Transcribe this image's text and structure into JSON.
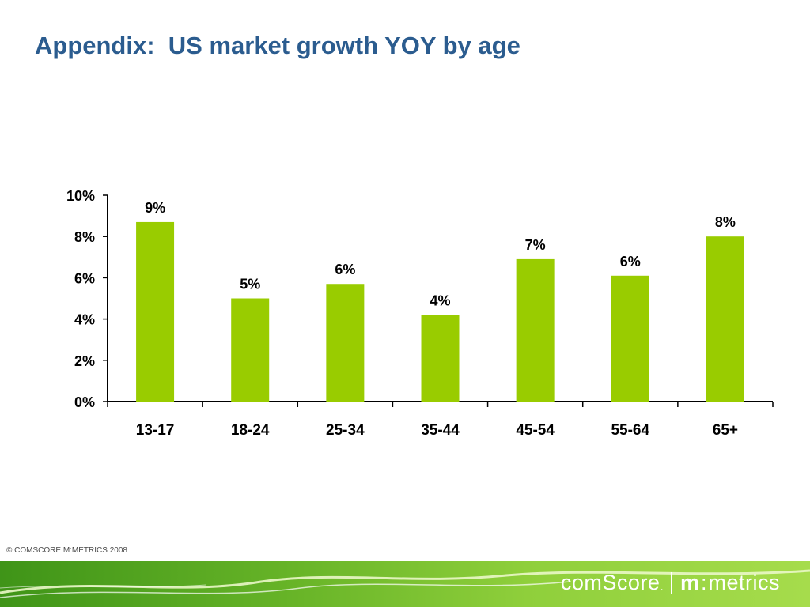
{
  "slide": {
    "title": "Appendix:  US market growth YOY by age"
  },
  "chart_data": {
    "type": "bar",
    "title": "",
    "xlabel": "",
    "ylabel": "",
    "categories": [
      "13-17",
      "18-24",
      "25-34",
      "35-44",
      "45-54",
      "55-64",
      "65+"
    ],
    "values": [
      8.7,
      5.0,
      5.7,
      4.2,
      6.9,
      6.1,
      8.0
    ],
    "data_labels": [
      "9%",
      "5%",
      "6%",
      "4%",
      "7%",
      "6%",
      "8%"
    ],
    "ylim": [
      0,
      10
    ],
    "yticks": [
      0,
      2,
      4,
      6,
      8,
      10
    ],
    "ytick_labels": [
      "0%",
      "2%",
      "4%",
      "6%",
      "8%",
      "10%"
    ],
    "grid": false,
    "legend": "none",
    "bar_color": "#99cc00"
  },
  "footer": {
    "copyright": "© COMSCORE M:METRICS 2008",
    "brand_comscore": "comScore",
    "brand_tm": ".",
    "brand_m": "m",
    "brand_colon": ":",
    "brand_metrics": "metrics",
    "band_color": "#66b327"
  }
}
